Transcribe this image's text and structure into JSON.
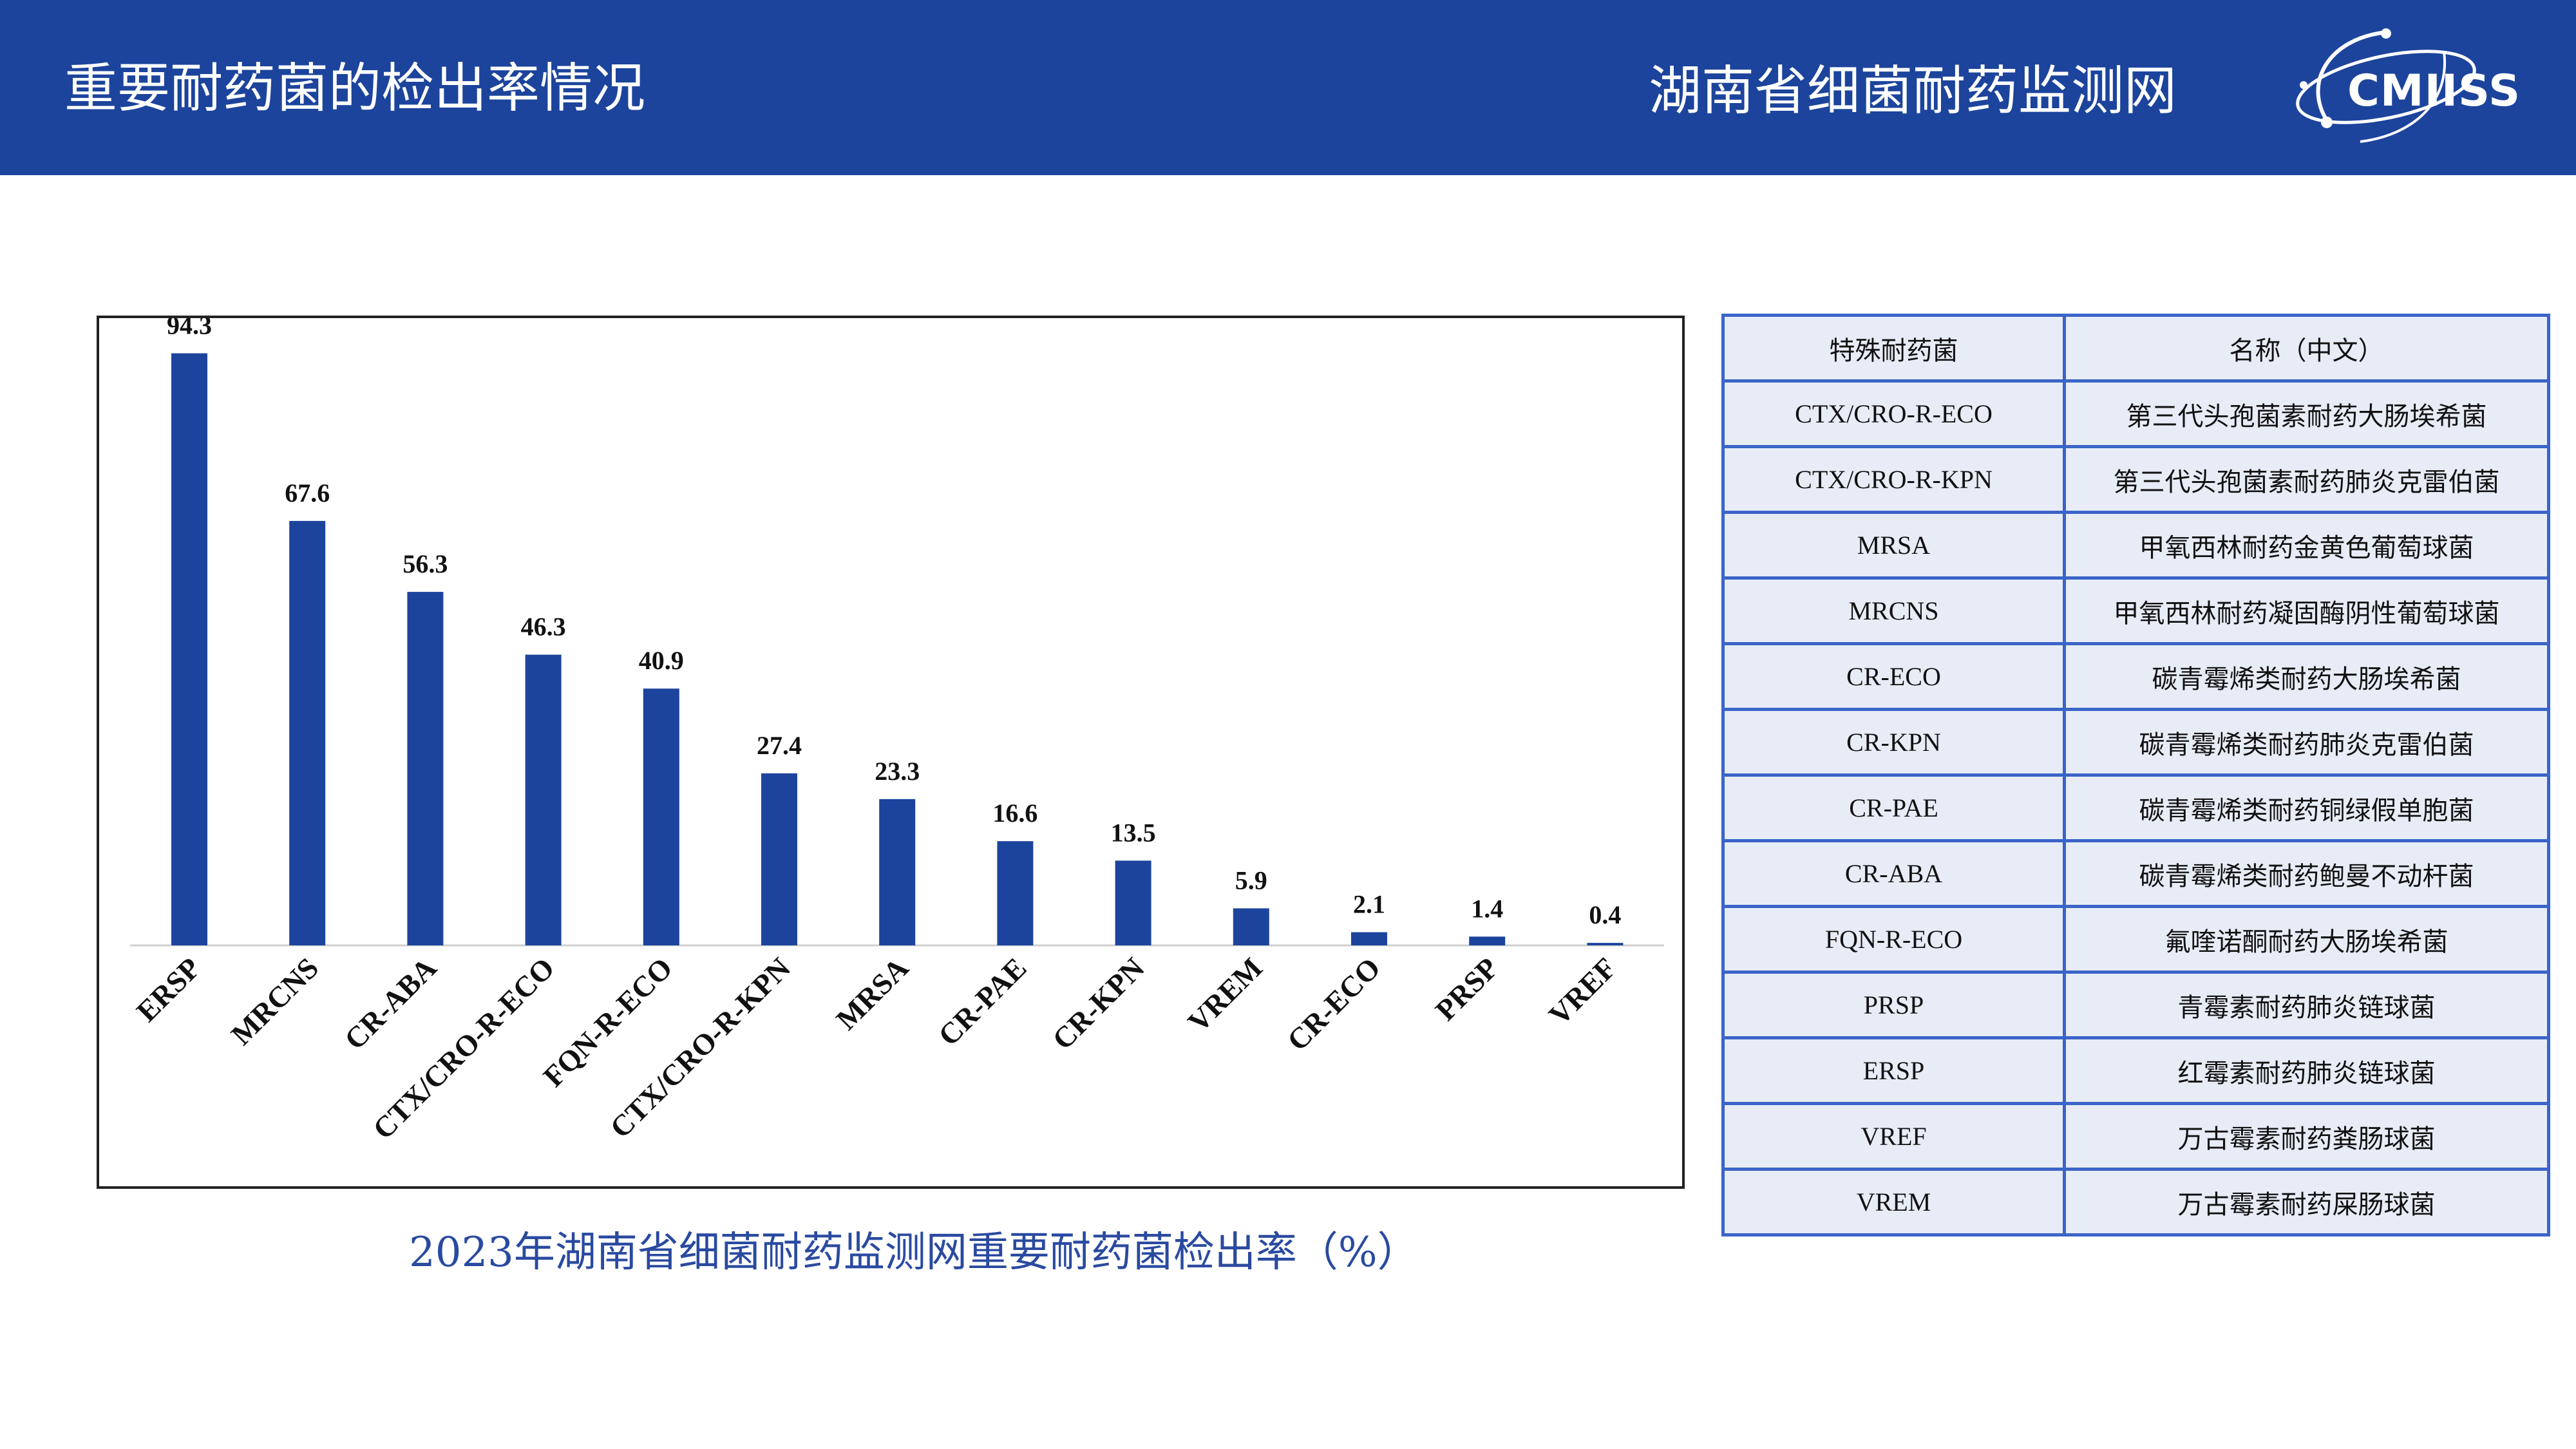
{
  "header": {
    "title": "重要耐药菌的检出率情况",
    "network": "湖南省细菌耐药监测网",
    "logo_text": "CMIISS"
  },
  "colors": {
    "header_bg": "#1c449c",
    "bar": "#1c449c",
    "table_border": "#3a64c8",
    "table_bg": "#e8ecf6",
    "caption": "#2a4aa0"
  },
  "chart_data": {
    "type": "bar",
    "categories": [
      "ERSP",
      "MRCNS",
      "CR-ABA",
      "CTX/CRO-R-ECO",
      "FQN-R-ECO",
      "CTX/CRO-R-KPN",
      "MRSA",
      "CR-PAE",
      "CR-KPN",
      "VREM",
      "CR-ECO",
      "PRSP",
      "VREF"
    ],
    "values": [
      94.3,
      67.6,
      56.3,
      46.3,
      40.9,
      27.4,
      23.3,
      16.6,
      13.5,
      5.9,
      2.1,
      1.4,
      0.4
    ],
    "value_labels": [
      "94.3",
      "67.6",
      "56.3",
      "46.3",
      "40.9",
      "27.4",
      "23.3",
      "16.6",
      "13.5",
      "5.9",
      "2.1",
      "1.4",
      "0.4"
    ],
    "title": "",
    "xlabel": "",
    "ylabel": "",
    "ylim": [
      0,
      100
    ],
    "grid": false,
    "data_labels": true,
    "caption": "2023年湖南省细菌耐药监测网重要耐药菌检出率（%）"
  },
  "legend_table": {
    "headers": [
      "特殊耐药菌",
      "名称（中文）"
    ],
    "rows": [
      [
        "CTX/CRO-R-ECO",
        "第三代头孢菌素耐药大肠埃希菌"
      ],
      [
        "CTX/CRO-R-KPN",
        "第三代头孢菌素耐药肺炎克雷伯菌"
      ],
      [
        "MRSA",
        "甲氧西林耐药金黄色葡萄球菌"
      ],
      [
        "MRCNS",
        "甲氧西林耐药凝固酶阴性葡萄球菌"
      ],
      [
        "CR-ECO",
        "碳青霉烯类耐药大肠埃希菌"
      ],
      [
        "CR-KPN",
        "碳青霉烯类耐药肺炎克雷伯菌"
      ],
      [
        "CR-PAE",
        "碳青霉烯类耐药铜绿假单胞菌"
      ],
      [
        "CR-ABA",
        "碳青霉烯类耐药鲍曼不动杆菌"
      ],
      [
        "FQN-R-ECO",
        "氟喹诺酮耐药大肠埃希菌"
      ],
      [
        "PRSP",
        "青霉素耐药肺炎链球菌"
      ],
      [
        "ERSP",
        "红霉素耐药肺炎链球菌"
      ],
      [
        "VREF",
        "万古霉素耐药粪肠球菌"
      ],
      [
        "VREM",
        "万古霉素耐药屎肠球菌"
      ]
    ]
  }
}
